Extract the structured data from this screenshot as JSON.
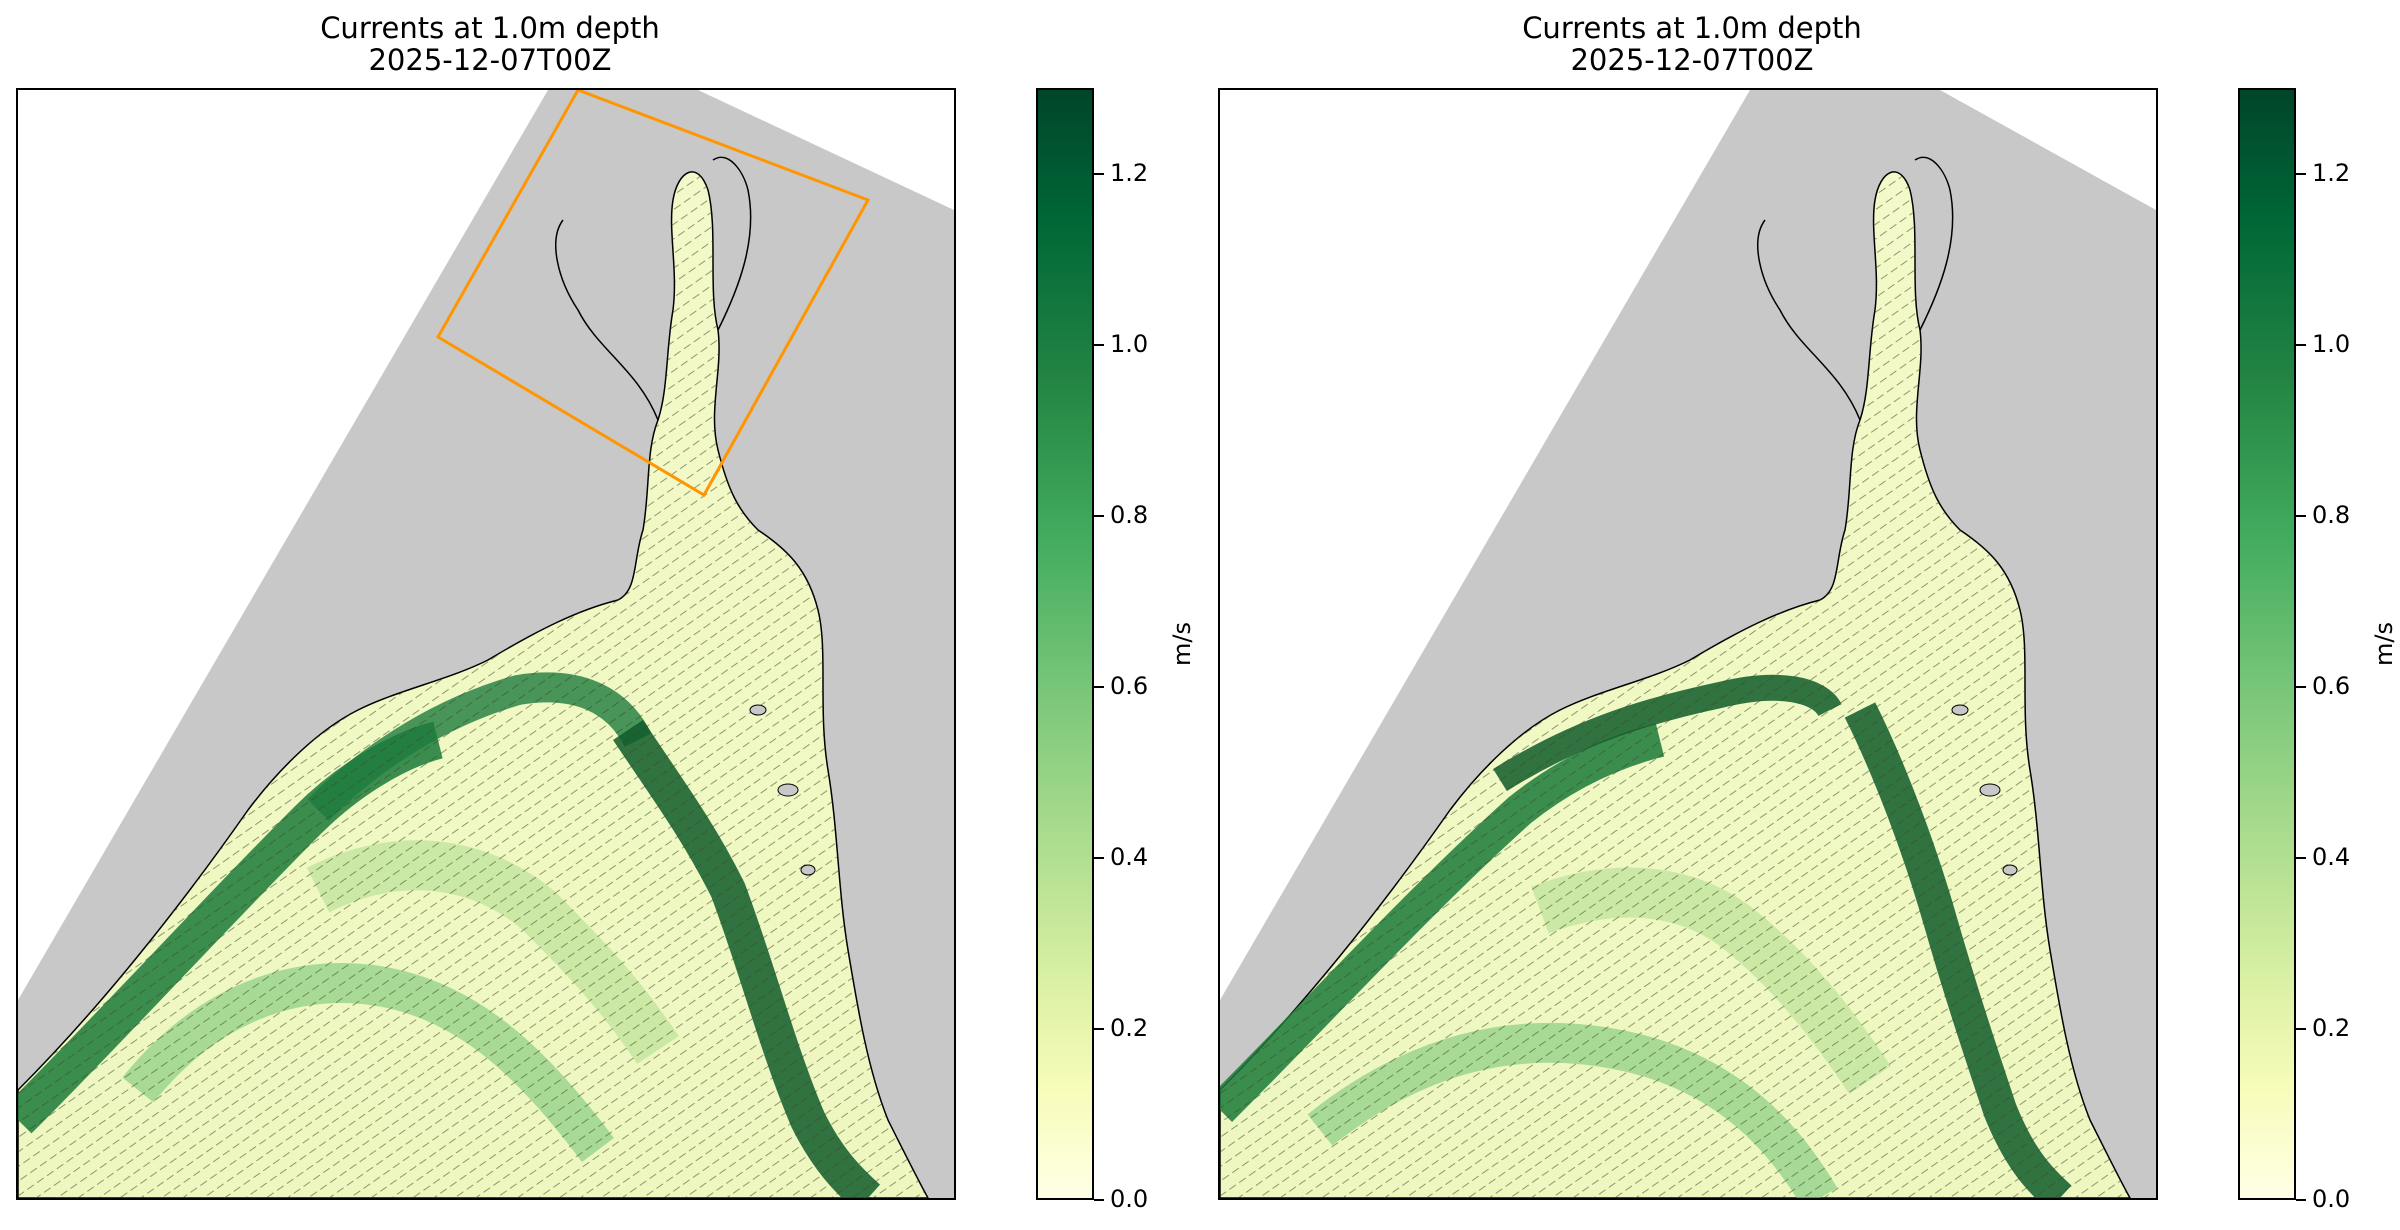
{
  "panels": [
    {
      "title_line1": "Currents at 1.0m depth",
      "title_line2": "2025-12-07T00Z",
      "has_subdomain_box": true
    },
    {
      "title_line1": "Currents at 1.0m depth",
      "title_line2": "2025-12-07T00Z",
      "has_subdomain_box": false
    }
  ],
  "colorbar": {
    "label": "m/s",
    "ticks": [
      "0.0",
      "0.2",
      "0.4",
      "0.6",
      "0.8",
      "1.0",
      "1.2"
    ],
    "range": [
      0.0,
      1.3
    ],
    "colormap": "Greens",
    "colors": [
      "#ffffe5",
      "#d9f0a3",
      "#addd8e",
      "#78c679",
      "#41ab5d",
      "#238443",
      "#005a32",
      "#00441b"
    ]
  },
  "colors": {
    "land_mask": "#c8c8c8",
    "subdomain_box": "#ff9500",
    "coastline": "#000000"
  },
  "chart_data": {
    "type": "heatmap",
    "title": "Currents at 1.0m depth 2025-12-07T00Z",
    "variable": "current speed with direction vectors",
    "unit": "m/s",
    "value_range": [
      0.0,
      1.3
    ]
  }
}
